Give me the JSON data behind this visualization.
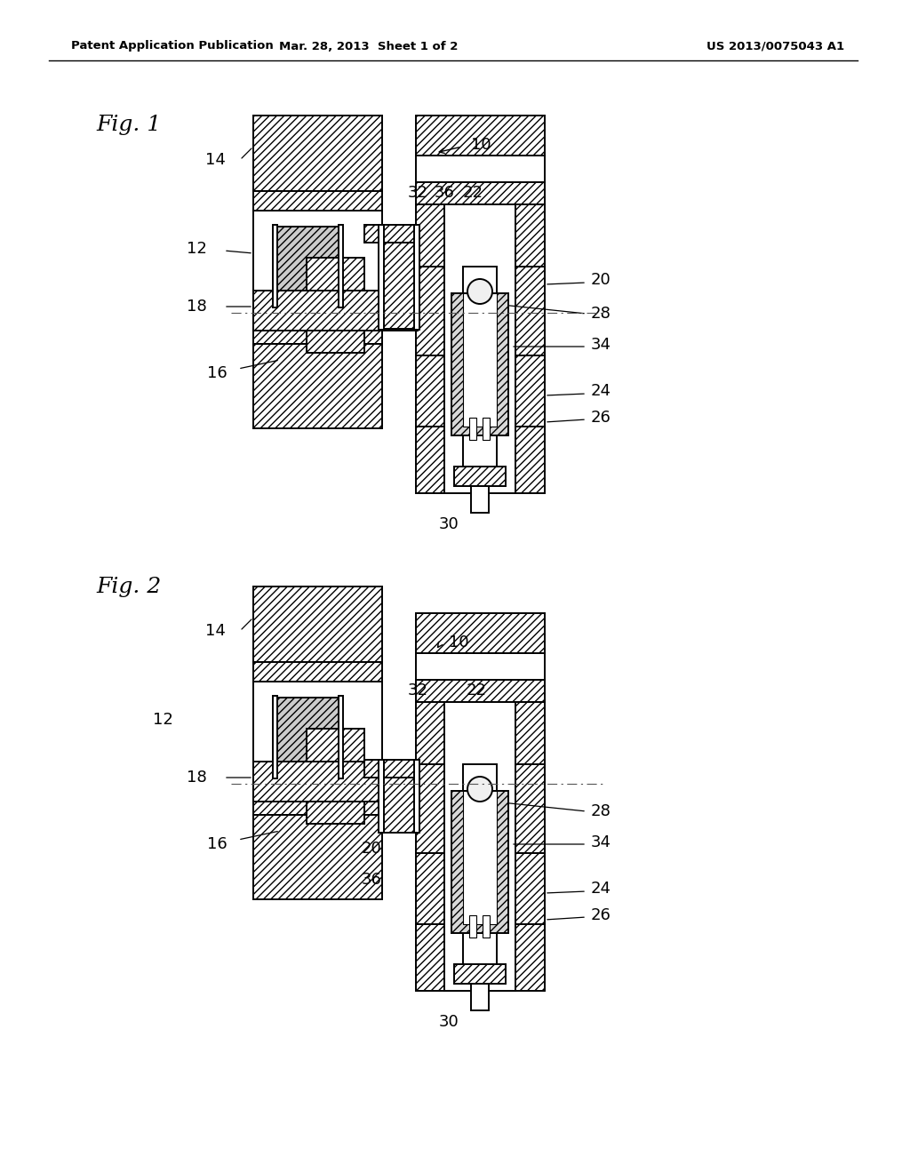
{
  "header_left": "Patent Application Publication",
  "header_mid": "Mar. 28, 2013  Sheet 1 of 2",
  "header_right": "US 2013/0075043 A1",
  "fig1_label": "Fig. 1",
  "fig2_label": "Fig. 2",
  "background": "#ffffff"
}
